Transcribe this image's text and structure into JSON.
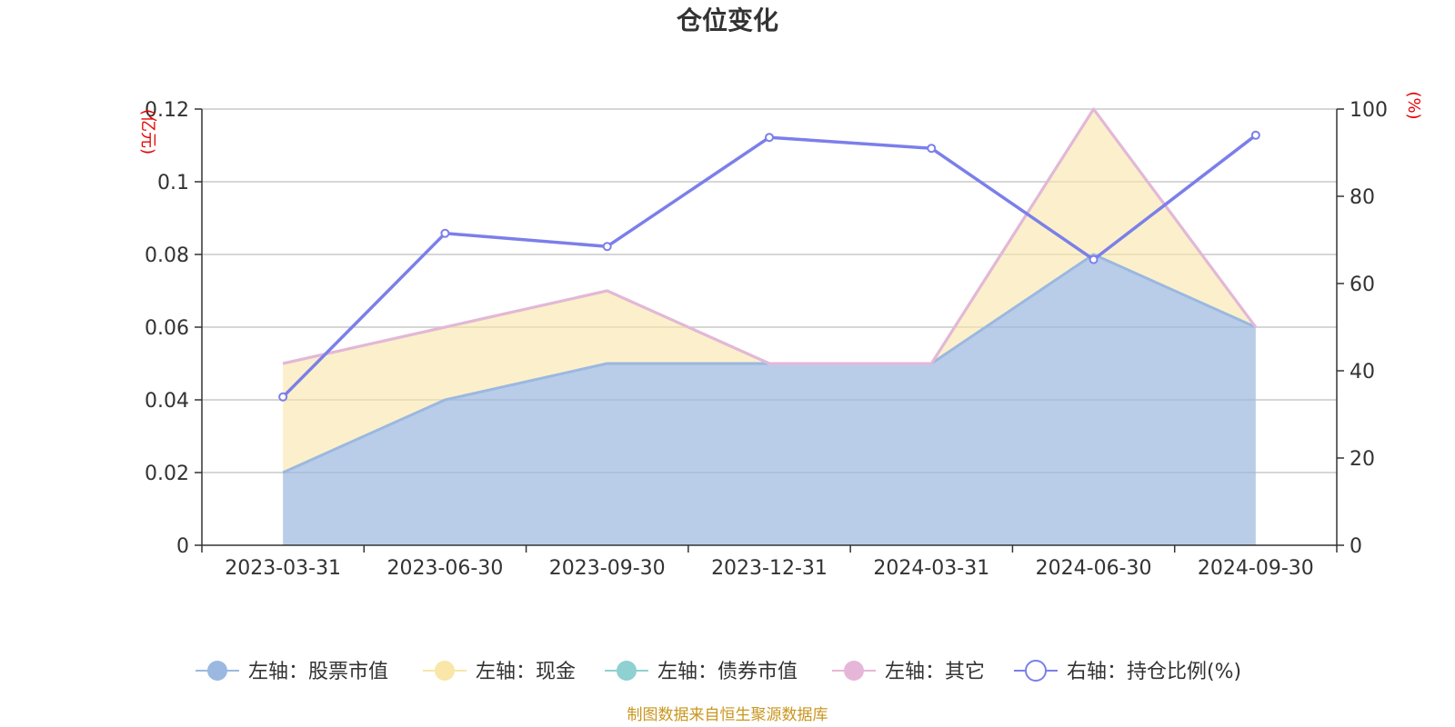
{
  "chart_data": {
    "type": "area",
    "title": "仓位变化",
    "categories": [
      "2023-03-31",
      "2023-06-30",
      "2023-09-30",
      "2023-12-31",
      "2024-03-31",
      "2024-06-30",
      "2024-09-30"
    ],
    "left_axis": {
      "unit": "(亿元)",
      "ylim": [
        0,
        0.12
      ],
      "ticks": [
        "0",
        "0.02",
        "0.04",
        "0.06",
        "0.08",
        "0.1",
        "0.12"
      ]
    },
    "right_axis": {
      "unit": "(%)",
      "ylim": [
        0,
        100
      ],
      "ticks": [
        "0",
        "20",
        "40",
        "60",
        "80",
        "100"
      ]
    },
    "series": [
      {
        "name": "左轴：股票市值",
        "axis": "left",
        "kind": "stacked-area",
        "color": "#9bb8e0",
        "values": [
          0.02,
          0.04,
          0.05,
          0.05,
          0.05,
          0.08,
          0.06
        ]
      },
      {
        "name": "左轴：现金",
        "axis": "left",
        "kind": "stacked-area",
        "color": "#f9e6a8",
        "values": [
          0.03,
          0.02,
          0.02,
          0.0,
          0.0,
          0.04,
          0.0
        ]
      },
      {
        "name": "左轴：债券市值",
        "axis": "left",
        "kind": "stacked-area",
        "color": "#8fd0d0",
        "values": [
          0,
          0,
          0,
          0,
          0,
          0,
          0
        ]
      },
      {
        "name": "左轴：其它",
        "axis": "left",
        "kind": "stacked-area",
        "color": "#e6b6d8",
        "values": [
          0,
          0,
          0,
          0,
          0,
          0,
          0
        ]
      },
      {
        "name": "右轴：持仓比例(%)",
        "axis": "right",
        "kind": "line",
        "color": "#7b7fea",
        "values": [
          34,
          71.5,
          68.5,
          93.5,
          91,
          65.5,
          94
        ]
      }
    ],
    "grid": true,
    "legend_position": "bottom"
  },
  "footer": {
    "source": "制图数据来自恒生聚源数据库"
  }
}
